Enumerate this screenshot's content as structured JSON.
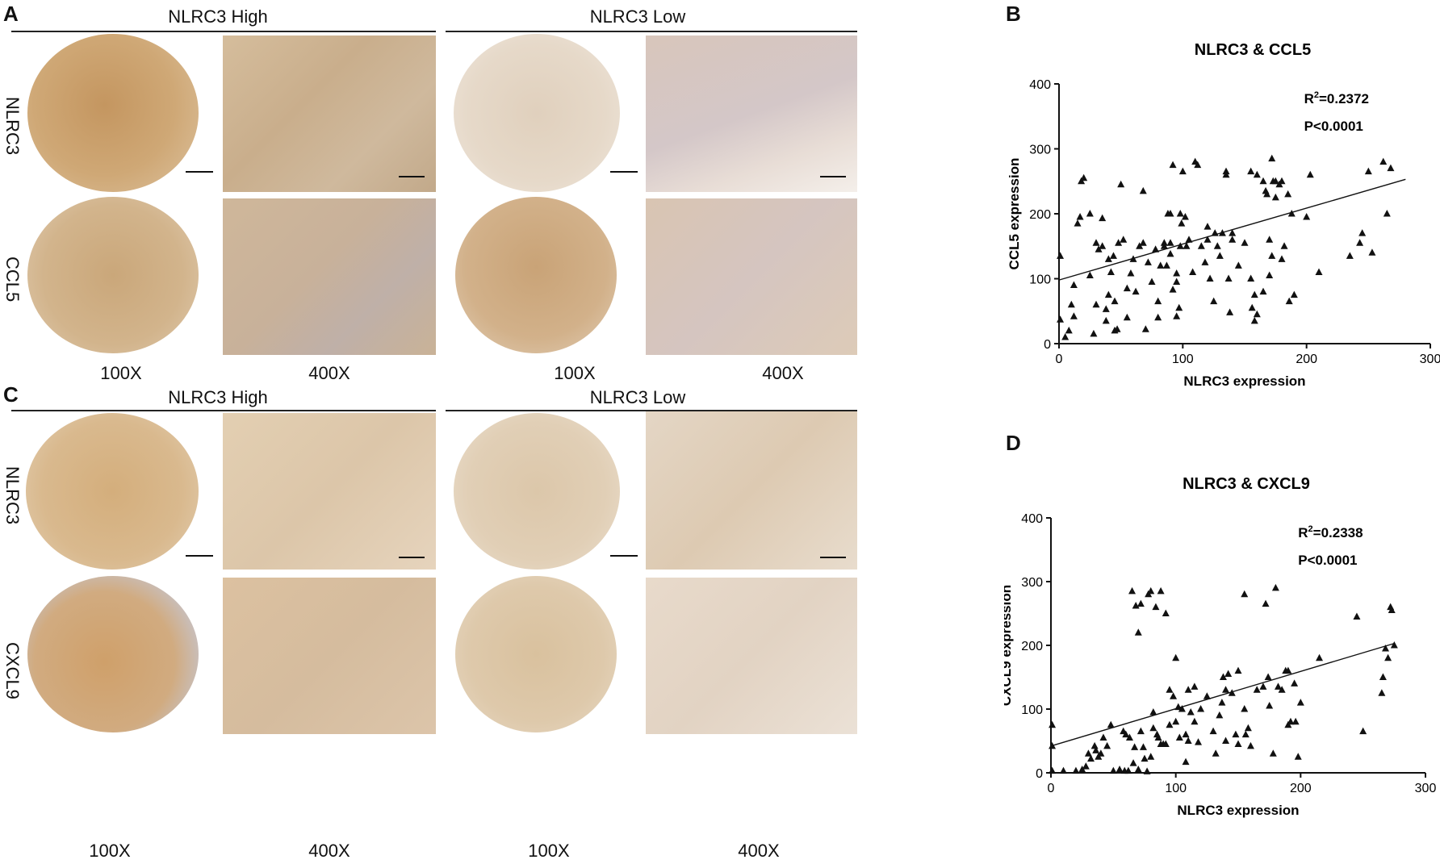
{
  "panels": {
    "A": {
      "letter": "A",
      "left_group": "NLRC3 High",
      "right_group": "NLRC3 Low",
      "rows": [
        "NLRC3",
        "CCL5"
      ],
      "mags": [
        "100X",
        "400X",
        "100X",
        "400X"
      ]
    },
    "C": {
      "letter": "C",
      "left_group": "NLRC3 High",
      "right_group": "NLRC3 Low",
      "rows": [
        "NLRC3",
        "CXCL9"
      ],
      "mags": [
        "100X",
        "400X",
        "100X",
        "400X"
      ]
    }
  },
  "chart_data": [
    {
      "letter": "B",
      "type": "scatter",
      "title": "NLRC3 & CCL5",
      "xlabel": "NLRC3 expression",
      "ylabel": "CCL5 expression",
      "xlim": [
        0,
        300
      ],
      "ylim": [
        0,
        400
      ],
      "xticks": [
        0,
        100,
        200,
        300
      ],
      "yticks": [
        0,
        100,
        200,
        300,
        400
      ],
      "stats": {
        "r2_base": "R",
        "r2_sup": "2",
        "r2_val": "=0.2372",
        "p": "P<0.0001"
      },
      "fit": {
        "x": [
          0,
          280
        ],
        "y": [
          98,
          253
        ]
      },
      "points": [
        [
          1,
          135
        ],
        [
          1,
          37
        ],
        [
          5,
          10
        ],
        [
          8,
          20
        ],
        [
          10,
          60
        ],
        [
          12,
          90
        ],
        [
          12,
          42
        ],
        [
          15,
          185
        ],
        [
          17,
          195
        ],
        [
          18,
          250
        ],
        [
          20,
          255
        ],
        [
          25,
          105
        ],
        [
          28,
          15
        ],
        [
          25,
          200
        ],
        [
          30,
          60
        ],
        [
          30,
          155
        ],
        [
          32,
          145
        ],
        [
          35,
          150
        ],
        [
          35,
          193
        ],
        [
          38,
          35
        ],
        [
          38,
          53
        ],
        [
          40,
          130
        ],
        [
          40,
          75
        ],
        [
          42,
          110
        ],
        [
          44,
          135
        ],
        [
          45,
          65
        ],
        [
          45,
          20
        ],
        [
          47,
          22
        ],
        [
          48,
          155
        ],
        [
          50,
          245
        ],
        [
          52,
          160
        ],
        [
          55,
          85
        ],
        [
          55,
          40
        ],
        [
          58,
          108
        ],
        [
          60,
          130
        ],
        [
          62,
          80
        ],
        [
          65,
          150
        ],
        [
          68,
          155
        ],
        [
          68,
          235
        ],
        [
          70,
          22
        ],
        [
          72,
          125
        ],
        [
          75,
          95
        ],
        [
          78,
          145
        ],
        [
          80,
          40
        ],
        [
          80,
          65
        ],
        [
          82,
          120
        ],
        [
          85,
          150
        ],
        [
          85,
          155
        ],
        [
          87,
          120
        ],
        [
          88,
          200
        ],
        [
          90,
          138
        ],
        [
          90,
          200
        ],
        [
          90,
          155
        ],
        [
          92,
          275
        ],
        [
          92,
          83
        ],
        [
          95,
          95
        ],
        [
          95,
          108
        ],
        [
          95,
          42
        ],
        [
          97,
          55
        ],
        [
          98,
          150
        ],
        [
          98,
          200
        ],
        [
          99,
          185
        ],
        [
          100,
          265
        ],
        [
          102,
          195
        ],
        [
          103,
          150
        ],
        [
          105,
          160
        ],
        [
          108,
          110
        ],
        [
          110,
          280
        ],
        [
          112,
          275
        ],
        [
          115,
          150
        ],
        [
          118,
          125
        ],
        [
          120,
          180
        ],
        [
          120,
          160
        ],
        [
          122,
          100
        ],
        [
          125,
          65
        ],
        [
          126,
          170
        ],
        [
          128,
          150
        ],
        [
          130,
          135
        ],
        [
          132,
          170
        ],
        [
          135,
          265
        ],
        [
          135,
          260
        ],
        [
          137,
          100
        ],
        [
          138,
          48
        ],
        [
          140,
          160
        ],
        [
          140,
          170
        ],
        [
          145,
          120
        ],
        [
          150,
          155
        ],
        [
          155,
          265
        ],
        [
          155,
          100
        ],
        [
          156,
          55
        ],
        [
          158,
          75
        ],
        [
          158,
          35
        ],
        [
          160,
          260
        ],
        [
          160,
          45
        ],
        [
          165,
          80
        ],
        [
          165,
          250
        ],
        [
          167,
          235
        ],
        [
          168,
          230
        ],
        [
          170,
          160
        ],
        [
          170,
          105
        ],
        [
          172,
          135
        ],
        [
          172,
          285
        ],
        [
          173,
          250
        ],
        [
          175,
          250
        ],
        [
          175,
          225
        ],
        [
          178,
          245
        ],
        [
          180,
          250
        ],
        [
          180,
          130
        ],
        [
          182,
          150
        ],
        [
          185,
          230
        ],
        [
          186,
          65
        ],
        [
          188,
          200
        ],
        [
          190,
          75
        ],
        [
          200,
          195
        ],
        [
          203,
          260
        ],
        [
          210,
          110
        ],
        [
          235,
          135
        ],
        [
          243,
          155
        ],
        [
          245,
          170
        ],
        [
          250,
          265
        ],
        [
          253,
          140
        ],
        [
          262,
          280
        ],
        [
          265,
          200
        ],
        [
          268,
          270
        ]
      ]
    },
    {
      "letter": "D",
      "type": "scatter",
      "title": "NLRC3 & CXCL9",
      "xlabel": "NLRC3 expression",
      "ylabel": "CXCL9 expression",
      "xlim": [
        0,
        300
      ],
      "ylim": [
        0,
        400
      ],
      "xticks": [
        0,
        100,
        200,
        300
      ],
      "yticks": [
        0,
        100,
        200,
        300,
        400
      ],
      "stats": {
        "r2_base": "R",
        "r2_sup": "2",
        "r2_val": "=0.2338",
        "p": "P<0.0001"
      },
      "fit": {
        "x": [
          0,
          275
        ],
        "y": [
          42,
          203
        ]
      },
      "points": [
        [
          1,
          75
        ],
        [
          1,
          42
        ],
        [
          1,
          3
        ],
        [
          10,
          3
        ],
        [
          20,
          3
        ],
        [
          25,
          5
        ],
        [
          28,
          10
        ],
        [
          30,
          30
        ],
        [
          32,
          22
        ],
        [
          35,
          42
        ],
        [
          36,
          35
        ],
        [
          38,
          25
        ],
        [
          40,
          30
        ],
        [
          42,
          55
        ],
        [
          45,
          42
        ],
        [
          48,
          75
        ],
        [
          50,
          3
        ],
        [
          55,
          5
        ],
        [
          58,
          65
        ],
        [
          59,
          3
        ],
        [
          60,
          60
        ],
        [
          62,
          3
        ],
        [
          63,
          55
        ],
        [
          65,
          285
        ],
        [
          66,
          15
        ],
        [
          67,
          40
        ],
        [
          68,
          262
        ],
        [
          70,
          220
        ],
        [
          70,
          5
        ],
        [
          72,
          265
        ],
        [
          72,
          65
        ],
        [
          74,
          40
        ],
        [
          75,
          22
        ],
        [
          77,
          2
        ],
        [
          78,
          280
        ],
        [
          80,
          285
        ],
        [
          80,
          25
        ],
        [
          82,
          70
        ],
        [
          82,
          95
        ],
        [
          84,
          260
        ],
        [
          85,
          60
        ],
        [
          86,
          55
        ],
        [
          88,
          45
        ],
        [
          88,
          285
        ],
        [
          90,
          45
        ],
        [
          92,
          250
        ],
        [
          92,
          45
        ],
        [
          95,
          130
        ],
        [
          95,
          75
        ],
        [
          98,
          120
        ],
        [
          100,
          180
        ],
        [
          100,
          80
        ],
        [
          102,
          103
        ],
        [
          103,
          55
        ],
        [
          105,
          100
        ],
        [
          108,
          60
        ],
        [
          108,
          17
        ],
        [
          110,
          130
        ],
        [
          110,
          50
        ],
        [
          112,
          95
        ],
        [
          115,
          135
        ],
        [
          115,
          80
        ],
        [
          118,
          48
        ],
        [
          120,
          100
        ],
        [
          125,
          120
        ],
        [
          130,
          65
        ],
        [
          132,
          30
        ],
        [
          135,
          90
        ],
        [
          137,
          110
        ],
        [
          138,
          150
        ],
        [
          140,
          130
        ],
        [
          140,
          50
        ],
        [
          142,
          155
        ],
        [
          145,
          125
        ],
        [
          148,
          60
        ],
        [
          150,
          160
        ],
        [
          150,
          45
        ],
        [
          155,
          280
        ],
        [
          155,
          100
        ],
        [
          156,
          60
        ],
        [
          158,
          70
        ],
        [
          160,
          42
        ],
        [
          165,
          130
        ],
        [
          170,
          135
        ],
        [
          172,
          265
        ],
        [
          174,
          150
        ],
        [
          175,
          105
        ],
        [
          178,
          30
        ],
        [
          180,
          290
        ],
        [
          182,
          135
        ],
        [
          185,
          130
        ],
        [
          188,
          160
        ],
        [
          190,
          160
        ],
        [
          190,
          75
        ],
        [
          192,
          80
        ],
        [
          195,
          140
        ],
        [
          196,
          80
        ],
        [
          198,
          25
        ],
        [
          200,
          110
        ],
        [
          215,
          180
        ],
        [
          245,
          245
        ],
        [
          250,
          65
        ],
        [
          265,
          125
        ],
        [
          266,
          150
        ],
        [
          268,
          195
        ],
        [
          270,
          180
        ],
        [
          272,
          260
        ],
        [
          273,
          255
        ],
        [
          275,
          200
        ]
      ]
    }
  ],
  "colors": {
    "stain_high": "#c9a06a",
    "stain_mid": "#d9bf98",
    "stain_low": "#e3d6c6",
    "hemo_blue": "#9ea9c9",
    "ink": "#111111"
  }
}
